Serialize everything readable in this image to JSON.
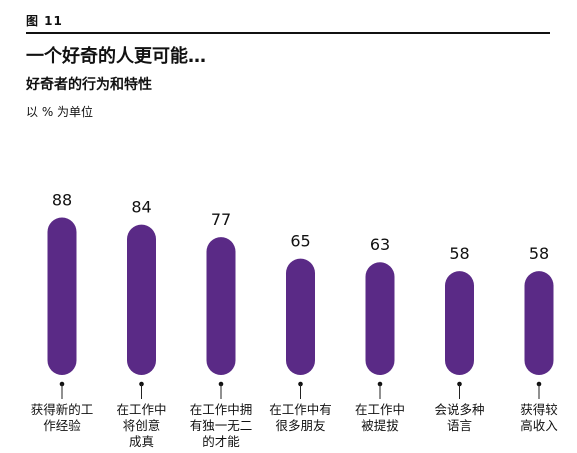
{
  "figure_label": "图 11",
  "title": "一个好奇的人更可能…",
  "subtitle": "好奇者的行为和特性",
  "unit_note": "以 % 为单位",
  "colors": {
    "bar": "#5a2a86",
    "rule": "#111111"
  },
  "chart_data": {
    "type": "bar",
    "title": "一个好奇的人更可能…",
    "subtitle": "好奇者的行为和特性",
    "ylabel": "以 % 为单位",
    "xlabel": "",
    "ylim": [
      0,
      100
    ],
    "grid": false,
    "legend": "none",
    "categories": [
      "获得新的工\n作经验",
      "在工作中\n将创意\n成真",
      "在工作中拥\n有独一无二\n的才能",
      "在工作中有\n很多朋友",
      "在工作中\n被提拔",
      "会说多种\n语言",
      "获得较\n高收入"
    ],
    "values": [
      88,
      84,
      77,
      65,
      63,
      58,
      58
    ]
  }
}
